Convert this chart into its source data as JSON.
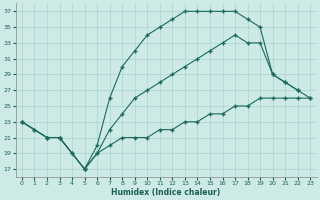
{
  "xlabel": "Humidex (Indice chaleur)",
  "bg_color": "#cdeae6",
  "grid_color": "#aad4cf",
  "line_color": "#1a6b5a",
  "xlim": [
    -0.5,
    23.5
  ],
  "ylim": [
    16,
    38
  ],
  "yticks": [
    17,
    19,
    21,
    23,
    25,
    27,
    29,
    31,
    33,
    35,
    37
  ],
  "xticks": [
    0,
    1,
    2,
    3,
    4,
    5,
    6,
    7,
    8,
    9,
    10,
    11,
    12,
    13,
    14,
    15,
    16,
    17,
    18,
    19,
    20,
    21,
    22,
    23
  ],
  "line1_x": [
    0,
    1,
    2,
    3,
    4,
    5,
    6,
    7,
    8,
    9,
    10,
    11,
    12,
    13,
    14,
    15,
    16,
    17,
    18,
    19,
    20,
    21,
    22,
    23
  ],
  "line1_y": [
    23,
    22,
    21,
    21,
    19,
    17,
    20,
    26,
    30,
    32,
    34,
    35,
    36,
    37,
    37,
    37,
    37,
    37,
    36,
    35,
    29,
    28,
    27,
    26
  ],
  "line2_x": [
    0,
    2,
    3,
    5,
    6,
    7,
    8,
    9,
    10,
    11,
    12,
    13,
    14,
    15,
    16,
    17,
    18,
    19,
    20,
    21,
    22
  ],
  "line2_y": [
    23,
    21,
    21,
    17,
    19,
    22,
    24,
    26,
    27,
    28,
    29,
    30,
    31,
    32,
    33,
    34,
    33,
    33,
    29,
    28,
    27
  ],
  "line3_x": [
    0,
    1,
    2,
    3,
    4,
    5,
    6,
    7,
    8,
    9,
    10,
    11,
    12,
    13,
    14,
    15,
    16,
    17,
    18,
    19,
    20,
    21,
    22,
    23
  ],
  "line3_y": [
    23,
    22,
    21,
    21,
    19,
    17,
    19,
    20,
    21,
    21,
    21,
    22,
    22,
    23,
    23,
    24,
    24,
    25,
    25,
    26,
    26,
    26,
    26,
    26
  ]
}
